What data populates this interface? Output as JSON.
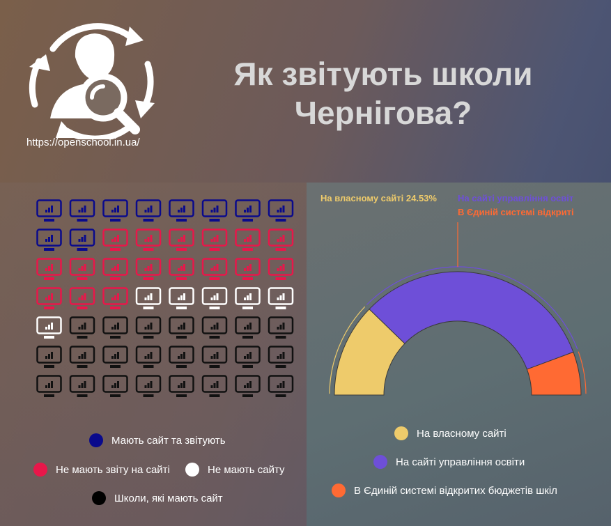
{
  "header": {
    "title_line1": "Як звітують школи",
    "title_line2": "Чернігова?",
    "url": "https://openschool.in.ua/"
  },
  "colors": {
    "blue": "#0a0a8c",
    "red": "#e8174a",
    "white": "#ffffff",
    "black": "#111111",
    "yellow": "#eecb6b",
    "purple": "#6e4fd8",
    "orange": "#ff6a33"
  },
  "icon_grid": {
    "icon": "monitor-chart-icon",
    "columns": 8,
    "counts": [
      {
        "category": "blue",
        "count": 10
      },
      {
        "category": "red",
        "count": 17
      },
      {
        "category": "white",
        "count": 6
      },
      {
        "category": "black",
        "count": 23
      }
    ]
  },
  "left_legend": [
    {
      "label": "Мають сайт та звітують",
      "color": "#0a0a8c"
    },
    {
      "label": "Не мають звіту на сайті",
      "color": "#e8174a"
    },
    {
      "label": "Не мають сайту",
      "color": "#ffffff"
    },
    {
      "label": "Школи, які мають сайт",
      "color": "#000000"
    }
  ],
  "chart_data": {
    "type": "pie",
    "style": "half-donut",
    "slices": [
      {
        "label": "На власному сайті",
        "value": 24.53,
        "color": "#eecb6b"
      },
      {
        "label": "На сайті управління освіти",
        "value": 64.15,
        "color": "#6e4fd8"
      },
      {
        "label": "В Єдиній системі відкритих бюджетів шкіл",
        "value": 11.32,
        "color": "#ff6a33"
      }
    ],
    "annotations": [
      {
        "text": "На власному сайті 24.53%",
        "color": "#eecb6b"
      },
      {
        "text": "На сайті управління освіт",
        "color": "#6e4fd8"
      },
      {
        "text": "В Єдиній системі відкриті",
        "color": "#ff6a33"
      }
    ]
  }
}
